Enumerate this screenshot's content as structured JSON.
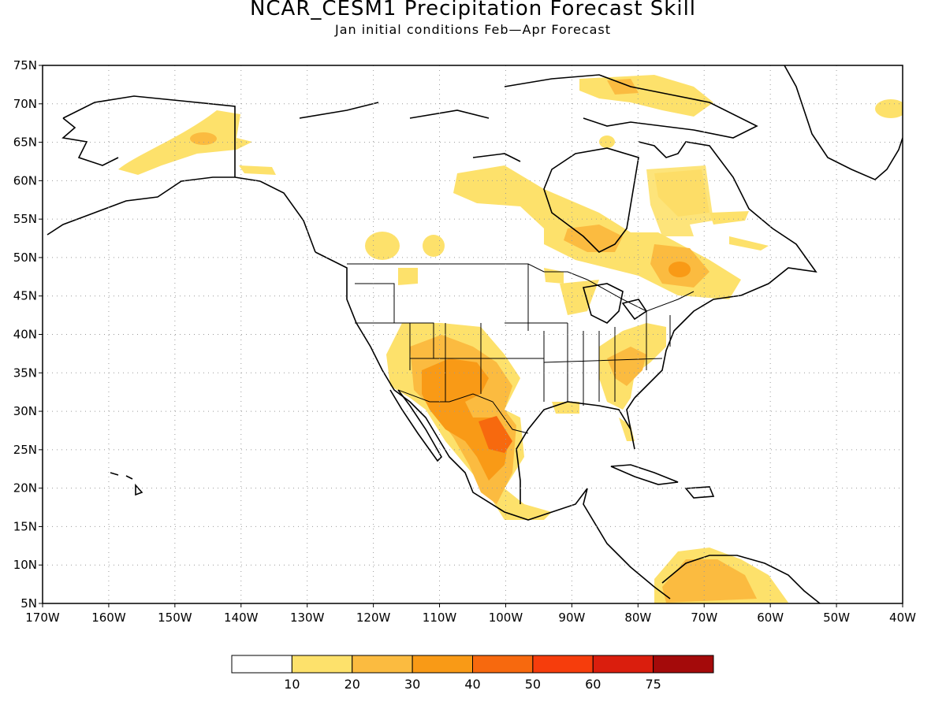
{
  "title": "NCAR_CESM1 Precipitation Forecast Skill",
  "subtitle": "Jan initial conditions  Feb—Apr Forecast",
  "map": {
    "lon_range": [
      -170,
      -40
    ],
    "lat_range": [
      5,
      75
    ],
    "lat_ticks": [
      "75N",
      "70N",
      "65N",
      "60N",
      "55N",
      "50N",
      "45N",
      "40N",
      "35N",
      "30N",
      "25N",
      "20N",
      "15N",
      "10N",
      "5N"
    ],
    "lon_ticks": [
      "170W",
      "160W",
      "150W",
      "140W",
      "130W",
      "120W",
      "110W",
      "100W",
      "90W",
      "80W",
      "70W",
      "60W",
      "50W",
      "40W"
    ],
    "grid": true
  },
  "colorbar": {
    "colors": [
      "#ffffff",
      "#fde16b",
      "#fbbb40",
      "#f99a16",
      "#f7690e",
      "#f63d0c",
      "#da1e0d",
      "#a40a0a"
    ],
    "labels": [
      "10",
      "20",
      "30",
      "40",
      "50",
      "60",
      "75"
    ]
  }
}
